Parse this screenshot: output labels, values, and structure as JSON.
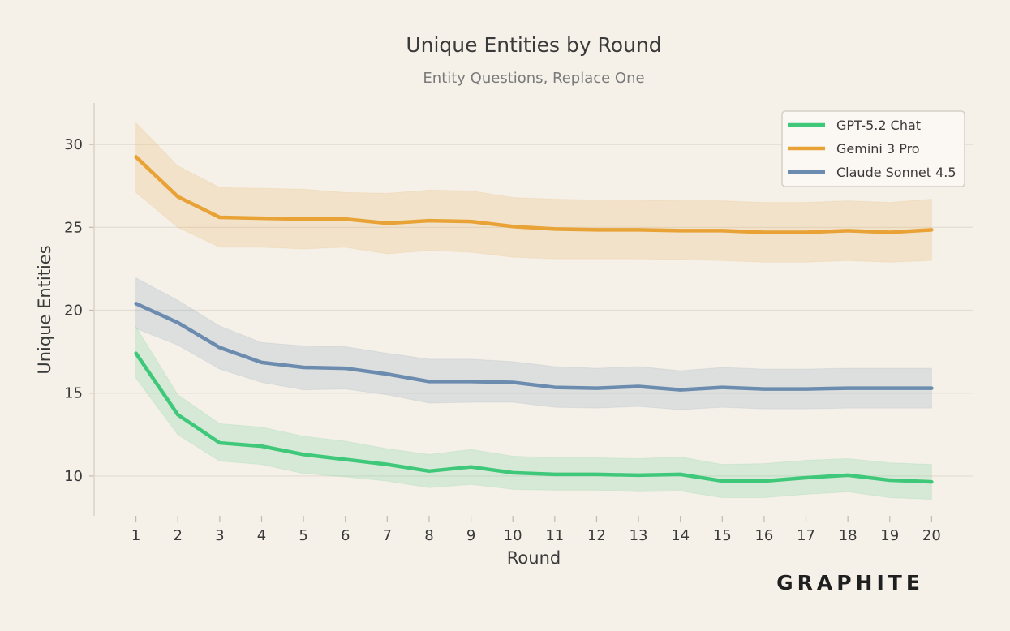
{
  "chart_data": {
    "type": "line",
    "title": "Unique Entities by Round",
    "subtitle": "Entity Questions, Replace One",
    "xlabel": "Round",
    "ylabel": "Unique Entities",
    "x": [
      1,
      2,
      3,
      4,
      5,
      6,
      7,
      8,
      9,
      10,
      11,
      12,
      13,
      14,
      15,
      16,
      17,
      18,
      19,
      20
    ],
    "xlim": [
      0.0,
      21.0
    ],
    "ylim": [
      7.6,
      32.5
    ],
    "yticks": [
      10,
      15,
      20,
      25,
      30
    ],
    "grid": "horizontal",
    "legend_position": "top-right",
    "series": [
      {
        "name": "GPT-5.2 Chat",
        "color": "#3fc87a",
        "values": [
          17.4,
          13.7,
          12.0,
          11.8,
          11.3,
          11.0,
          10.7,
          10.3,
          10.55,
          10.2,
          10.1,
          10.1,
          10.05,
          10.1,
          9.7,
          9.7,
          9.9,
          10.05,
          9.75,
          9.65
        ],
        "lower": [
          15.9,
          12.5,
          10.9,
          10.7,
          10.15,
          9.95,
          9.7,
          9.3,
          9.5,
          9.2,
          9.15,
          9.15,
          9.05,
          9.1,
          8.7,
          8.7,
          8.9,
          9.05,
          8.7,
          8.6
        ],
        "upper": [
          19.0,
          14.9,
          13.15,
          12.95,
          12.4,
          12.1,
          11.65,
          11.3,
          11.6,
          11.2,
          11.1,
          11.1,
          11.05,
          11.15,
          10.7,
          10.75,
          10.95,
          11.05,
          10.8,
          10.7
        ]
      },
      {
        "name": "Gemini 3 Pro",
        "color": "#e8a236",
        "values": [
          29.25,
          26.85,
          25.6,
          25.55,
          25.5,
          25.5,
          25.25,
          25.4,
          25.35,
          25.05,
          24.9,
          24.85,
          24.85,
          24.8,
          24.8,
          24.7,
          24.7,
          24.8,
          24.7,
          24.85
        ],
        "lower": [
          27.1,
          25.0,
          23.8,
          23.8,
          23.7,
          23.8,
          23.4,
          23.6,
          23.5,
          23.2,
          23.1,
          23.1,
          23.1,
          23.05,
          23.0,
          22.9,
          22.9,
          23.0,
          22.9,
          23.0
        ],
        "upper": [
          31.3,
          28.7,
          27.4,
          27.35,
          27.3,
          27.1,
          27.05,
          27.25,
          27.2,
          26.8,
          26.7,
          26.65,
          26.65,
          26.6,
          26.6,
          26.5,
          26.5,
          26.6,
          26.5,
          26.7
        ]
      },
      {
        "name": "Claude Sonnet 4.5",
        "color": "#6b8cae",
        "values": [
          20.4,
          19.25,
          17.75,
          16.85,
          16.55,
          16.5,
          16.15,
          15.7,
          15.7,
          15.65,
          15.35,
          15.3,
          15.4,
          15.2,
          15.35,
          15.25,
          15.25,
          15.3,
          15.3,
          15.3
        ],
        "lower": [
          18.9,
          17.9,
          16.45,
          15.65,
          15.2,
          15.25,
          14.9,
          14.4,
          14.45,
          14.45,
          14.15,
          14.1,
          14.2,
          14.0,
          14.15,
          14.05,
          14.05,
          14.1,
          14.1,
          14.1
        ],
        "upper": [
          21.95,
          20.6,
          19.05,
          18.05,
          17.85,
          17.8,
          17.4,
          17.05,
          17.05,
          16.9,
          16.6,
          16.5,
          16.6,
          16.35,
          16.55,
          16.45,
          16.45,
          16.5,
          16.5,
          16.5
        ]
      }
    ]
  },
  "brand": {
    "name": "GRAPHITE"
  },
  "colors": {
    "background": "#f5f0e8",
    "grid": "#e2dcd2",
    "axis": "#d9d3c9"
  }
}
